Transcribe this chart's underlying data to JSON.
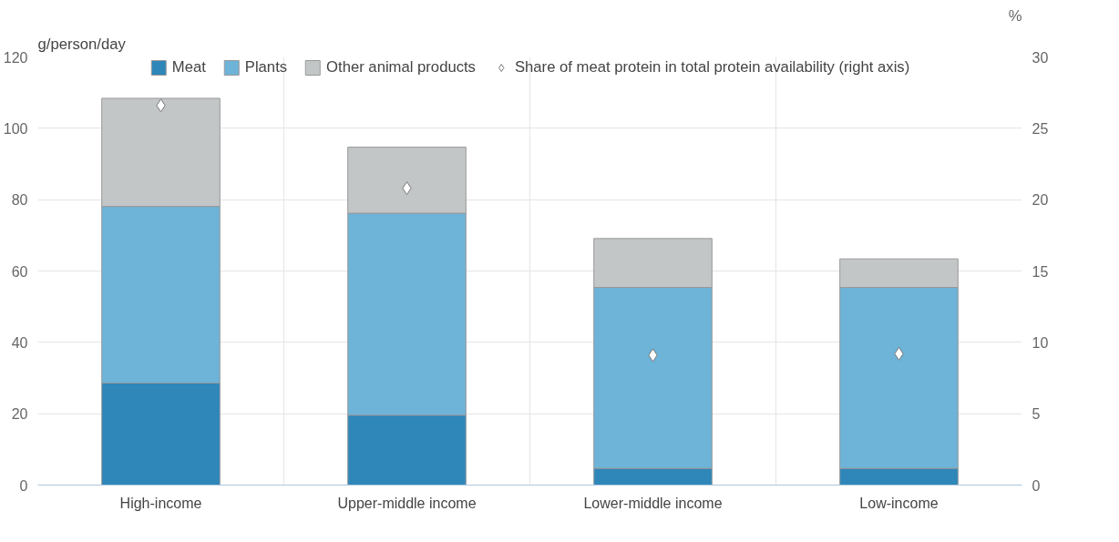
{
  "chart_data": {
    "type": "bar",
    "stacked": true,
    "ylabel": "g/person/day",
    "y2label": "%",
    "categories": [
      "High-income",
      "Upper-middle income",
      "Lower-middle income",
      "Low-income"
    ],
    "series": [
      {
        "name": "Meat",
        "color": "#2e86b9",
        "values": [
          28.6,
          19.6,
          4.7,
          4.7
        ]
      },
      {
        "name": "Plants",
        "color": "#6eb3d8",
        "values": [
          49.5,
          56.6,
          50.7,
          50.7
        ]
      },
      {
        "name": "Other animal products",
        "color": "#c3c6c7",
        "values": [
          30.3,
          18.5,
          13.7,
          8.0
        ]
      },
      {
        "name": "Share of meat protein in total protein availability (right axis)",
        "type": "scatter",
        "axis": "y2",
        "marker": "diamond",
        "color": "#ffffff",
        "values": [
          26.6,
          20.8,
          9.1,
          9.2
        ]
      }
    ],
    "ylim": [
      0,
      120
    ],
    "yticks": [
      0,
      20,
      40,
      60,
      80,
      100,
      120
    ],
    "y2lim": [
      0,
      30
    ],
    "y2ticks": [
      0,
      5,
      10,
      15,
      20,
      25,
      30
    ],
    "grid": true,
    "legend": "top"
  }
}
